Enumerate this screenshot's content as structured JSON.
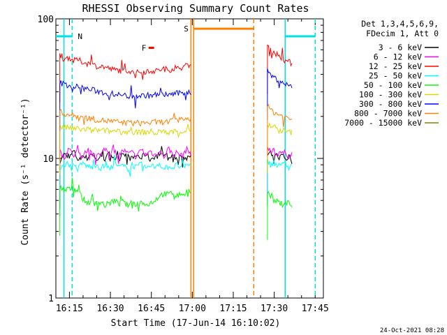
{
  "chart_data": {
    "type": "line",
    "title": "RHESSI Observing Summary Count Rates",
    "xlabel": "Start Time (17-Jun-14 16:10:02)",
    "ylabel": "Count Rate (s⁻¹ detector⁻¹)",
    "yscale": "log",
    "ylim": [
      1,
      100
    ],
    "y_ticks": [
      {
        "v": 1,
        "label": "1"
      },
      {
        "v": 10,
        "label": "10"
      },
      {
        "v": 100,
        "label": "100"
      }
    ],
    "xlim": [
      "16:10:02",
      "17:48:00"
    ],
    "x_ticks": [
      "16:15",
      "16:30",
      "16:45",
      "17:00",
      "17:15",
      "17:30",
      "17:45"
    ],
    "legend_header": [
      "Det 1,3,4,5,6,9,",
      "FDecim 1, Att 0"
    ],
    "legend_position": "right",
    "footer_date": "24-Oct-2021 08:28",
    "segments": [
      [
        "16:11:30",
        "16:59:30"
      ],
      [
        "17:27:30",
        "17:36:30"
      ]
    ],
    "series": [
      {
        "name": "3 - 6 keV",
        "color": "#000000",
        "values": [
          [
            9.6,
            10.7,
            9.9,
            11.3,
            9.8,
            10.5,
            10.0,
            11.0,
            9.7,
            10.4,
            9.9,
            10.8,
            10.1,
            9.8,
            11.2,
            10.3,
            9.9,
            10.6,
            10.0,
            10.9,
            9.8,
            10.4,
            10.1,
            11.4,
            9.9,
            10.5,
            10.0,
            10.8,
            9.7,
            10.6
          ],
          [
            10.4,
            11.0,
            9.8,
            10.6,
            10.1,
            10.8,
            9.9,
            10.3,
            10.0
          ]
        ]
      },
      {
        "name": "6 - 12 keV",
        "color": "#ff00ff",
        "values": [
          [
            11.0,
            10.2,
            11.8,
            10.5,
            11.3,
            10.0,
            11.6,
            10.7,
            11.1,
            10.3,
            11.9,
            10.6,
            11.2,
            10.4,
            11.5,
            10.8,
            11.0,
            10.1,
            11.7,
            10.6,
            11.3,
            10.5,
            11.4,
            10.2,
            11.8,
            10.7,
            11.0,
            10.4,
            11.6,
            10.9
          ],
          [
            12.0,
            11.0,
            11.6,
            10.5,
            11.3,
            10.7,
            11.1,
            10.3,
            10.8
          ]
        ]
      },
      {
        "name": "12 - 25 keV",
        "color": "#ff0000",
        "values": [
          [
            56,
            52,
            53,
            50,
            51,
            49,
            48,
            47,
            46,
            46,
            45,
            44,
            43,
            43,
            42,
            43,
            42,
            41,
            42,
            42,
            43,
            42,
            43,
            44,
            43,
            44,
            44,
            45,
            46,
            47
          ],
          [
            64,
            61,
            58,
            56,
            54,
            52,
            50,
            49,
            48
          ]
        ]
      },
      {
        "name": "25 - 50 keV",
        "color": "#00ffff",
        "values": [
          [
            8.5,
            9.2,
            8.7,
            9.0,
            8.4,
            9.3,
            8.8,
            8.6,
            9.1,
            8.5,
            8.9,
            8.3,
            9.2,
            8.7,
            8.8,
            8.4,
            9.0,
            8.6,
            9.1,
            8.5,
            8.9,
            8.7,
            9.3,
            8.4,
            8.8,
            8.6,
            9.0,
            8.5,
            8.9,
            8.7
          ],
          [
            9.8,
            9.0,
            9.5,
            8.8,
            9.3,
            8.9,
            9.1,
            8.6,
            8.9
          ]
        ]
      },
      {
        "name": "50 - 100 keV",
        "color": "#00ff00",
        "values": [
          [
            6.2,
            5.9,
            6.0,
            6.3,
            5.8,
            5.2,
            4.8,
            5.0,
            4.7,
            4.9,
            4.6,
            4.8,
            5.0,
            4.7,
            4.9,
            4.6,
            4.8,
            4.7,
            4.9,
            4.6,
            4.8,
            5.0,
            5.4,
            5.6,
            5.5,
            5.7,
            5.4,
            5.6,
            5.5,
            5.6
          ],
          [
            5.8,
            5.2,
            5.0,
            4.9,
            4.8,
            4.7,
            4.9,
            4.8,
            4.6
          ]
        ]
      },
      {
        "name": "100 - 300 keV",
        "color": "#d8d800",
        "values": [
          [
            17.0,
            16.5,
            16.7,
            16.2,
            16.4,
            16.0,
            16.2,
            15.8,
            16.0,
            15.7,
            15.9,
            15.6,
            15.8,
            15.5,
            15.6,
            15.4,
            15.6,
            15.3,
            15.5,
            15.4,
            15.6,
            15.3,
            15.5,
            15.4,
            15.6,
            15.5,
            15.7,
            15.6,
            15.8,
            15.9
          ],
          [
            17.5,
            17.0,
            16.6,
            16.3,
            16.0,
            15.8,
            15.6,
            15.4,
            15.3
          ]
        ]
      },
      {
        "name": "300 - 800 keV",
        "color": "#0000ff",
        "values": [
          [
            35.0,
            34.0,
            33.5,
            33.0,
            32.5,
            32.0,
            31.5,
            31.0,
            30.5,
            30.0,
            29.5,
            29.0,
            29.0,
            28.5,
            28.5,
            28.0,
            28.0,
            28.2,
            28.0,
            28.4,
            28.2,
            28.6,
            28.4,
            28.8,
            28.6,
            29.0,
            29.2,
            29.5,
            29.8,
            30.0
          ],
          [
            42,
            40,
            38,
            37,
            36,
            35,
            34,
            33,
            33
          ]
        ]
      },
      {
        "name": "800 - 7000 keV",
        "color": "#ff8000",
        "values": [
          [
            21.5,
            21.0,
            20.5,
            20.3,
            20.0,
            19.8,
            19.5,
            19.3,
            19.0,
            18.8,
            18.6,
            18.5,
            18.3,
            18.2,
            18.0,
            18.0,
            17.9,
            18.0,
            17.9,
            18.1,
            18.0,
            18.2,
            18.1,
            18.4,
            18.3,
            18.6,
            18.8,
            19.0,
            19.3,
            19.5
          ],
          [
            23.5,
            22.5,
            21.5,
            21.0,
            20.5,
            20.0,
            19.6,
            19.3,
            19.0
          ]
        ]
      },
      {
        "name": "7000 - 15000 keV",
        "color": "#808000",
        "values": [
          [],
          []
        ]
      }
    ],
    "annotations": [
      {
        "label": "N",
        "color": "#00e0e0"
      },
      {
        "label": "F",
        "color": "#ff0000"
      },
      {
        "label": "S",
        "color": "#ff8000"
      }
    ],
    "markers": {
      "night": [
        [
          "16:10:02",
          "16:16:00"
        ],
        [
          "17:34:00",
          "17:45:00"
        ]
      ],
      "flare": [
        [
          "16:44:00",
          "16:46:00"
        ]
      ],
      "saa": [
        [
          "17:00:30",
          "17:22:30"
        ]
      ],
      "cyan_solid_times": [
        "16:13:00",
        "17:34:00"
      ],
      "cyan_dashed_times": [
        "16:16:00",
        "17:45:00"
      ],
      "orange_solid_times": [
        "16:59:30",
        "17:00:30"
      ],
      "orange_dashed_times": [
        "17:22:30"
      ],
      "night_level": 75,
      "flare_level": 62,
      "saa_level": 85
    }
  }
}
